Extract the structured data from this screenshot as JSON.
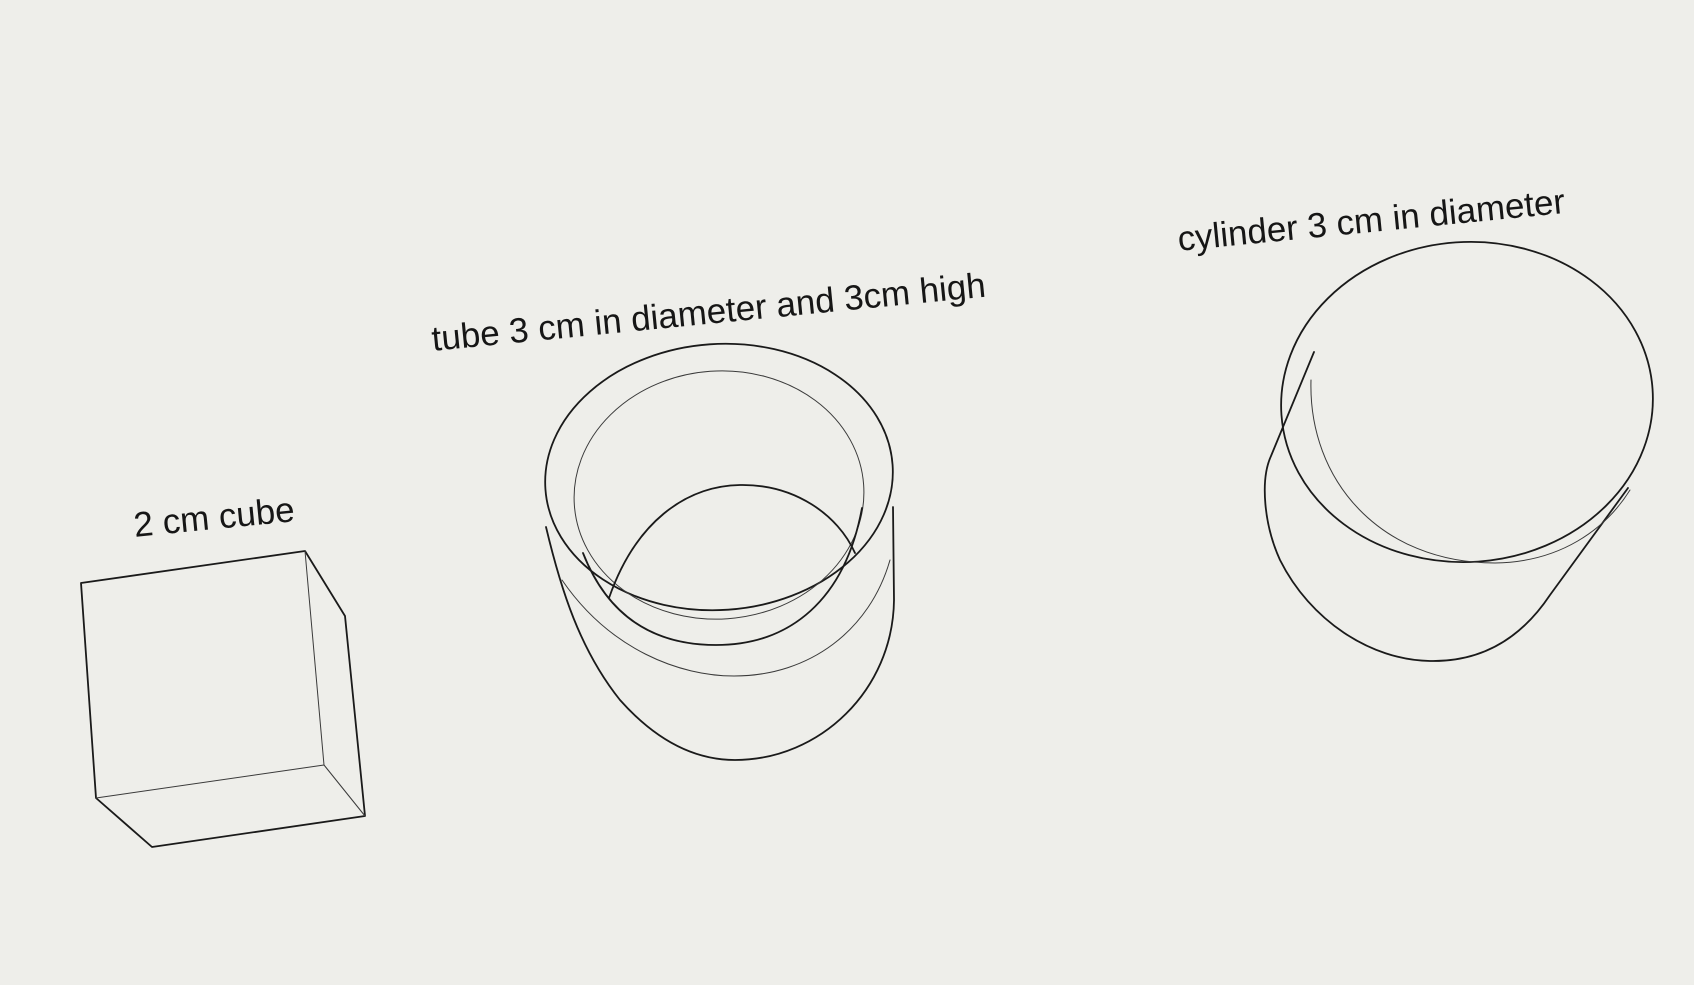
{
  "labels": {
    "cube": "2 cm cube",
    "tube": "tube 3 cm in diameter and 3cm high",
    "cylinder": "cylinder 3 cm in diameter"
  },
  "shapes": [
    {
      "name": "cube",
      "label_ref": "labels.cube"
    },
    {
      "name": "tube",
      "label_ref": "labels.tube"
    },
    {
      "name": "cylinder",
      "label_ref": "labels.cylinder"
    }
  ],
  "colors": {
    "paper": "#eeeeea",
    "ink": "#1a1a1a",
    "border": "#ffffff"
  }
}
